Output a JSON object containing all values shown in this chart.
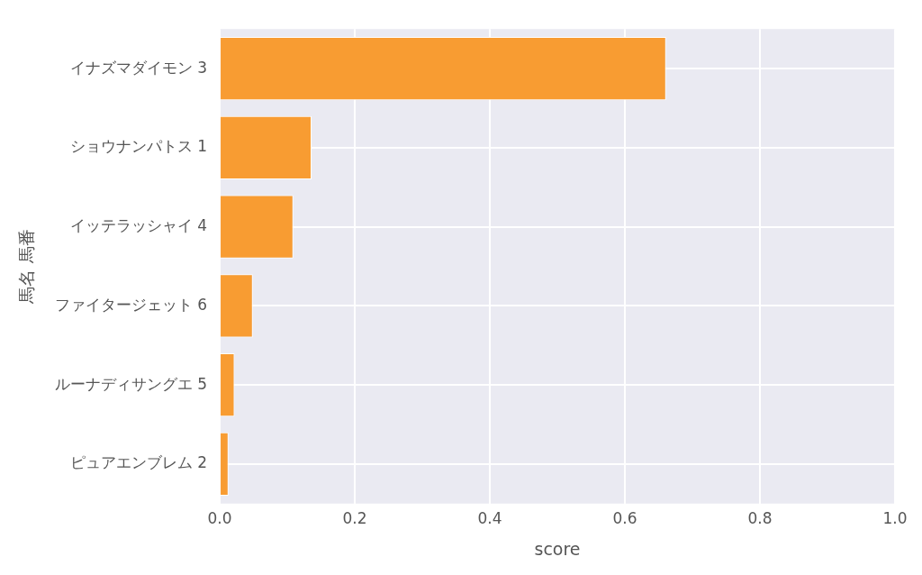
{
  "chart_data": {
    "type": "bar",
    "orientation": "horizontal",
    "xlabel": "score",
    "ylabel": "馬名 馬番",
    "categories": [
      "イナズマダイモン 3",
      "ショウナンパトス 1",
      "イッテラッシャイ 4",
      "ファイタージェット 6",
      "ルーナディサングエ 5",
      "ピュアエンブレム 2"
    ],
    "values": [
      0.661,
      0.136,
      0.109,
      0.049,
      0.022,
      0.013
    ],
    "color": "#f89c32",
    "xlim": [
      0,
      1
    ],
    "xticks": [
      {
        "value": 0,
        "label": "0.0"
      },
      {
        "value": 0.2,
        "label": "0.2"
      },
      {
        "value": 0.4,
        "label": "0.4"
      },
      {
        "value": 0.6,
        "label": "0.6"
      },
      {
        "value": 0.8,
        "label": "0.8"
      },
      {
        "value": 1,
        "label": "1.0"
      }
    ],
    "grid": true,
    "legend": false
  }
}
